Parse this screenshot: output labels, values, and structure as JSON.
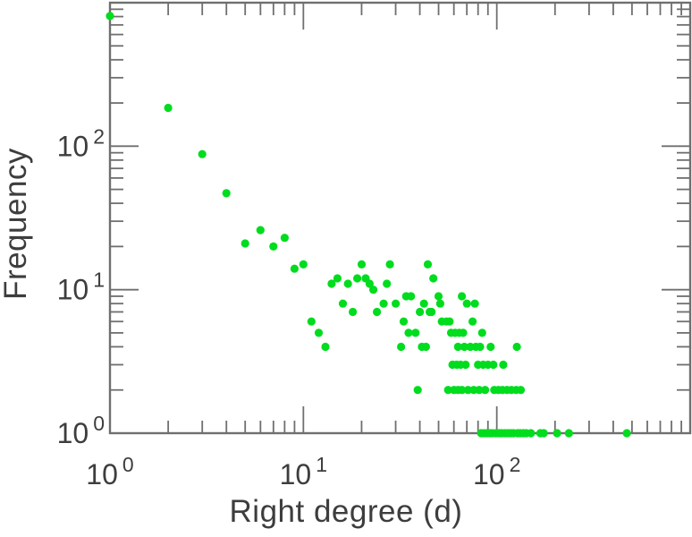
{
  "chart_data": {
    "type": "scatter",
    "title": "",
    "xlabel": "Right degree (d)",
    "ylabel": "Frequency",
    "x_scale": "log",
    "y_scale": "log",
    "xlim": [
      1,
      1000
    ],
    "ylim": [
      1,
      1000
    ],
    "x_tick_exponents": [
      0,
      1,
      2
    ],
    "y_tick_exponents": [
      0,
      1,
      2
    ],
    "grid": "off",
    "legend": "none",
    "marker": "filled-circle",
    "marker_color": "#00DC1E",
    "axis_color": "#6f6f6f",
    "label_color": "#3d3d3d",
    "points": [
      [
        1,
        807
      ],
      [
        2,
        185
      ],
      [
        3,
        88
      ],
      [
        4,
        47
      ],
      [
        5,
        21
      ],
      [
        6,
        26
      ],
      [
        7,
        20
      ],
      [
        8,
        23
      ],
      [
        9,
        14
      ],
      [
        10,
        15
      ],
      [
        11,
        6
      ],
      [
        12,
        5
      ],
      [
        13,
        4
      ],
      [
        14,
        11
      ],
      [
        15,
        12
      ],
      [
        16,
        8
      ],
      [
        17,
        11
      ],
      [
        18,
        7
      ],
      [
        19,
        12
      ],
      [
        20,
        15
      ],
      [
        21,
        12
      ],
      [
        22,
        11
      ],
      [
        23,
        10
      ],
      [
        24,
        7
      ],
      [
        26,
        8
      ],
      [
        27,
        11
      ],
      [
        28,
        15
      ],
      [
        30,
        8
      ],
      [
        32,
        4
      ],
      [
        33,
        6
      ],
      [
        34,
        9
      ],
      [
        35,
        5
      ],
      [
        36,
        9
      ],
      [
        38,
        5
      ],
      [
        39,
        2
      ],
      [
        40,
        7
      ],
      [
        41,
        4
      ],
      [
        42,
        8
      ],
      [
        43,
        4
      ],
      [
        44,
        15
      ],
      [
        45,
        7
      ],
      [
        46,
        7
      ],
      [
        47,
        12
      ],
      [
        50,
        9
      ],
      [
        51,
        8
      ],
      [
        52,
        6
      ],
      [
        55,
        6
      ],
      [
        57,
        6
      ],
      [
        58,
        5
      ],
      [
        61,
        5
      ],
      [
        64,
        5
      ],
      [
        67,
        5
      ],
      [
        66,
        9
      ],
      [
        70,
        8
      ],
      [
        75,
        6
      ],
      [
        77,
        8
      ],
      [
        84,
        5
      ],
      [
        63,
        4
      ],
      [
        68,
        4
      ],
      [
        73,
        4
      ],
      [
        78,
        4
      ],
      [
        82,
        4
      ],
      [
        93,
        4
      ],
      [
        127,
        4
      ],
      [
        59,
        3
      ],
      [
        62,
        3
      ],
      [
        65,
        3
      ],
      [
        69,
        3
      ],
      [
        80,
        3
      ],
      [
        85,
        3
      ],
      [
        90,
        3
      ],
      [
        96,
        3
      ],
      [
        108,
        3
      ],
      [
        56,
        2
      ],
      [
        60,
        2
      ],
      [
        63,
        2
      ],
      [
        66,
        2
      ],
      [
        71,
        2
      ],
      [
        76,
        2
      ],
      [
        81,
        2
      ],
      [
        87,
        2
      ],
      [
        97,
        2
      ],
      [
        102,
        2
      ],
      [
        107,
        2
      ],
      [
        113,
        2
      ],
      [
        119,
        2
      ],
      [
        126,
        2
      ],
      [
        133,
        2
      ],
      [
        83,
        1
      ],
      [
        86,
        1
      ],
      [
        89,
        1
      ],
      [
        92,
        1
      ],
      [
        95,
        1
      ],
      [
        99,
        1
      ],
      [
        103,
        1
      ],
      [
        106,
        1
      ],
      [
        110,
        1
      ],
      [
        114,
        1
      ],
      [
        118,
        1
      ],
      [
        122,
        1
      ],
      [
        128,
        1
      ],
      [
        132,
        1
      ],
      [
        137,
        1
      ],
      [
        142,
        1
      ],
      [
        150,
        1
      ],
      [
        168,
        1
      ],
      [
        175,
        1
      ],
      [
        205,
        1
      ],
      [
        236,
        1
      ],
      [
        470,
        1
      ]
    ]
  },
  "labels": {
    "x_axis": "Right degree (d)",
    "y_axis": "Frequency"
  }
}
